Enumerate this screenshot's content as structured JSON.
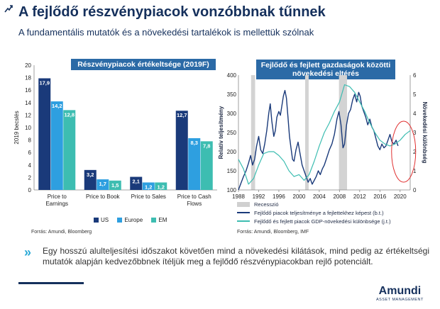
{
  "page": {
    "title": "A fejlődő részvénypiacok vonzóbbnak tűnnek",
    "subtitle": "A fundamentális mutatók és a növekedési tartalékok is mellettük szólnak",
    "body_text": "Egy hosszú alulteljesítési időszakot követően mind a növekedési kilátások, mind pedig az értékeltségi mutatók alapján kedvezőbbnek ítéljük meg a fejlődő részvénypiacokban rejlő potenciált.",
    "logo": {
      "main": "Amundi",
      "sub": "ASSET MANAGEMENT"
    }
  },
  "chart_data": [
    {
      "type": "bar",
      "title": "Részvénypiacok értékeltsége (2019F)",
      "ylabel": "2019 becslés",
      "ylim": [
        0,
        20
      ],
      "yticks": [
        "0",
        "2",
        "4",
        "6",
        "8",
        "10",
        "12",
        "14",
        "16",
        "18",
        "20"
      ],
      "categories": [
        "Price to Earnings",
        "Price to Book",
        "Price to Sales",
        "Price to Cash Flows"
      ],
      "series": [
        {
          "name": "US",
          "values": [
            17.9,
            3.2,
            2.1,
            12.7
          ],
          "labels": [
            "17,9",
            "3,2",
            "2,1",
            "12,7"
          ],
          "color": "#1a3a7a"
        },
        {
          "name": "Europe",
          "values": [
            14.2,
            1.7,
            1.2,
            8.3
          ],
          "labels": [
            "14,2",
            "1,7",
            "1,2",
            "8,3"
          ],
          "color": "#2e9fe0"
        },
        {
          "name": "EM",
          "values": [
            12.8,
            1.5,
            1.2,
            7.8
          ],
          "labels": [
            "12,8",
            "1,5",
            "1,2",
            "7,8"
          ],
          "color": "#3dbdb1"
        }
      ],
      "source": "Forrás: Amundi, Bloomberg"
    },
    {
      "type": "line",
      "title": "Fejlődő és fejlett gazdaságok közötti növekedési eltérés",
      "ylabel_left": "Relatív teljesítmény",
      "ylabel_right": "Növekedési különbség",
      "xlim": [
        1988,
        2022
      ],
      "ylim_left": [
        100,
        400
      ],
      "ylim_right": [
        0,
        6
      ],
      "xticks": [
        "1988",
        "1992",
        "1996",
        "2000",
        "2004",
        "2008",
        "2012",
        "2016",
        "2020"
      ],
      "yticks_left": [
        "100",
        "150",
        "200",
        "250",
        "300",
        "350",
        "400"
      ],
      "yticks_right": [
        "0",
        "1",
        "2",
        "3",
        "4",
        "5",
        "6"
      ],
      "recessions": [
        [
          1990.5,
          1991.3
        ],
        [
          2001.2,
          2001.9
        ],
        [
          2007.9,
          2009.5
        ]
      ],
      "series": [
        {
          "name": "Fejlődő piacok teljesítménye a fejlettekhez képest (b.t.)",
          "axis": "left",
          "color": "#1a3a7a",
          "points": [
            [
              1988,
              100
            ],
            [
              1988.5,
              118
            ],
            [
              1989,
              135
            ],
            [
              1989.5,
              150
            ],
            [
              1990,
              170
            ],
            [
              1990.4,
              190
            ],
            [
              1990.8,
              165
            ],
            [
              1991.2,
              180
            ],
            [
              1991.6,
              215
            ],
            [
              1992,
              240
            ],
            [
              1992.4,
              205
            ],
            [
              1992.8,
              195
            ],
            [
              1993.2,
              220
            ],
            [
              1993.6,
              255
            ],
            [
              1994,
              300
            ],
            [
              1994.3,
              325
            ],
            [
              1994.6,
              280
            ],
            [
              1995,
              240
            ],
            [
              1995.3,
              255
            ],
            [
              1995.6,
              290
            ],
            [
              1996,
              305
            ],
            [
              1996.3,
              295
            ],
            [
              1996.6,
              320
            ],
            [
              1996.9,
              345
            ],
            [
              1997.2,
              360
            ],
            [
              1997.5,
              340
            ],
            [
              1997.8,
              290
            ],
            [
              1998.1,
              240
            ],
            [
              1998.4,
              210
            ],
            [
              1998.7,
              180
            ],
            [
              1999,
              175
            ],
            [
              1999.4,
              205
            ],
            [
              1999.8,
              225
            ],
            [
              2000.2,
              195
            ],
            [
              2000.6,
              165
            ],
            [
              2001,
              150
            ],
            [
              2001.4,
              135
            ],
            [
              2001.8,
              120
            ],
            [
              2002.2,
              130
            ],
            [
              2002.6,
              115
            ],
            [
              2003,
              125
            ],
            [
              2003.4,
              135
            ],
            [
              2003.8,
              150
            ],
            [
              2004.2,
              140
            ],
            [
              2004.6,
              155
            ],
            [
              2005,
              165
            ],
            [
              2005.5,
              185
            ],
            [
              2006,
              205
            ],
            [
              2006.5,
              220
            ],
            [
              2007,
              245
            ],
            [
              2007.5,
              285
            ],
            [
              2007.9,
              305
            ],
            [
              2008.3,
              270
            ],
            [
              2008.7,
              210
            ],
            [
              2009,
              220
            ],
            [
              2009.4,
              270
            ],
            [
              2009.8,
              300
            ],
            [
              2010.2,
              310
            ],
            [
              2010.6,
              335
            ],
            [
              2011,
              350
            ],
            [
              2011.4,
              330
            ],
            [
              2011.8,
              355
            ],
            [
              2012.1,
              345
            ],
            [
              2012.4,
              320
            ],
            [
              2012.8,
              305
            ],
            [
              2013.2,
              290
            ],
            [
              2013.6,
              270
            ],
            [
              2014,
              285
            ],
            [
              2014.4,
              265
            ],
            [
              2014.8,
              255
            ],
            [
              2015.2,
              235
            ],
            [
              2015.6,
              215
            ],
            [
              2016,
              205
            ],
            [
              2016.4,
              220
            ],
            [
              2016.8,
              210
            ],
            [
              2017.2,
              215
            ],
            [
              2017.6,
              230
            ],
            [
              2018,
              245
            ],
            [
              2018.4,
              225
            ],
            [
              2018.8,
              220
            ],
            [
              2019.2,
              230
            ],
            [
              2019.6,
              215
            ]
          ]
        },
        {
          "name": "Fejlődő és fejlett piacok GDP-növekedési különbsége (j.t.)",
          "axis": "right",
          "color": "#3dbdb1",
          "points": [
            [
              1988,
              1.6
            ],
            [
              1989,
              1.1
            ],
            [
              1990,
              0.3
            ],
            [
              1991,
              0.6
            ],
            [
              1992,
              1.3
            ],
            [
              1993,
              1.9
            ],
            [
              1994,
              2.0
            ],
            [
              1995,
              2.0
            ],
            [
              1996,
              1.8
            ],
            [
              1997,
              1.5
            ],
            [
              1998,
              1.0
            ],
            [
              1999,
              0.7
            ],
            [
              2000,
              0.8
            ],
            [
              2001,
              0.5
            ],
            [
              2002,
              0.8
            ],
            [
              2003,
              1.5
            ],
            [
              2004,
              2.3
            ],
            [
              2005,
              3.0
            ],
            [
              2006,
              3.5
            ],
            [
              2007,
              4.1
            ],
            [
              2008,
              4.6
            ],
            [
              2009,
              5.5
            ],
            [
              2010,
              5.4
            ],
            [
              2011,
              5.1
            ],
            [
              2012,
              4.6
            ],
            [
              2013,
              4.1
            ],
            [
              2014,
              3.5
            ],
            [
              2015,
              3.0
            ],
            [
              2016,
              2.6
            ],
            [
              2017,
              2.4
            ],
            [
              2018,
              2.3
            ],
            [
              2019,
              2.4
            ],
            [
              2020,
              2.6
            ],
            [
              2021,
              2.9
            ],
            [
              2022,
              3.1
            ]
          ]
        }
      ],
      "legend": [
        "Recesszió",
        "Fejlődő piacok teljesítménye a fejlettekhez képest (b.t.)",
        "Fejlődő és fejlett piacok GDP-növekedési különbsége (j.t.)"
      ],
      "source": "Forrás: Amundi, Bloomberg, IMF"
    }
  ],
  "colors": {
    "navy": "#15305c",
    "panel_header": "#2b6aa6",
    "us": "#1a3a7a",
    "europe": "#2e9fe0",
    "em": "#3dbdb1",
    "annotation": "#e03030",
    "accent": "#2aa9d6"
  }
}
